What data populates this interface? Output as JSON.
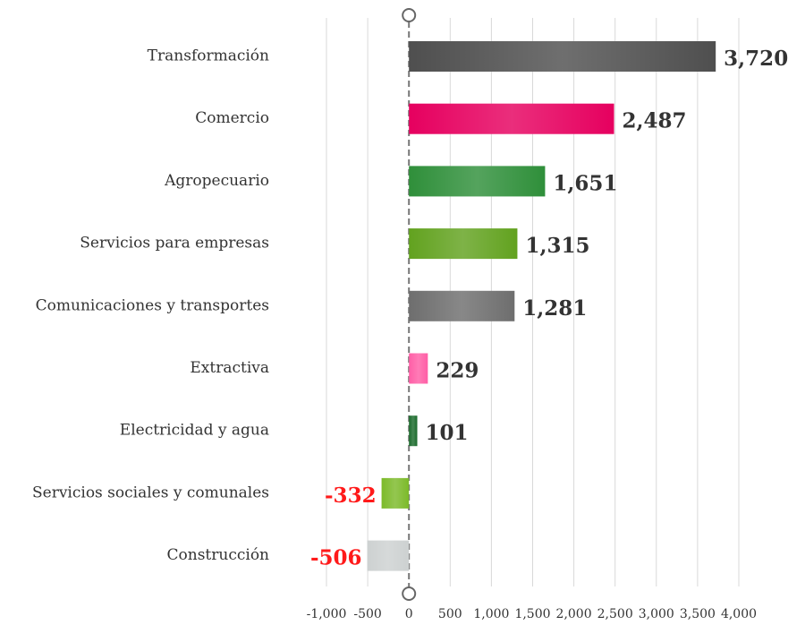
{
  "chart_data": {
    "type": "hbar",
    "categories": [
      "Transformación",
      "Comercio",
      "Agropecuario",
      "Servicios para empresas",
      "Comunicaciones y transportes",
      "Extractiva",
      "Electricidad y agua",
      "Servicios sociales y comunales",
      "Construcción"
    ],
    "values": [
      3720,
      2487,
      1651,
      1315,
      1281,
      229,
      101,
      -332,
      -506
    ],
    "value_labels": [
      "3,720",
      "2,487",
      "1,651",
      "1,315",
      "1,281",
      "229",
      "101",
      "-332",
      "-506"
    ],
    "colors": [
      "#4f4f4f",
      "#e6005f",
      "#2f8f3a",
      "#62a21f",
      "#6e6e6e",
      "#ff5ea6",
      "#1b6b2c",
      "#7cba2a",
      "#cdd1d1"
    ],
    "label_color": "#333333",
    "negative_label_color": "#ff1a1a",
    "xlim": [
      -1000,
      4000
    ],
    "xticks": [
      {
        "value": -1000,
        "label": "-1,000"
      },
      -500,
      0,
      500,
      {
        "value": 1000,
        "label": "1,000"
      },
      {
        "value": 1500,
        "label": "1,500"
      },
      {
        "value": 2000,
        "label": "2,000"
      },
      {
        "value": 2500,
        "label": "2,500"
      },
      {
        "value": 3000,
        "label": "3,000"
      },
      {
        "value": 3500,
        "label": "3,500"
      },
      {
        "value": 4000,
        "label": "4,000"
      }
    ],
    "grid": true
  }
}
